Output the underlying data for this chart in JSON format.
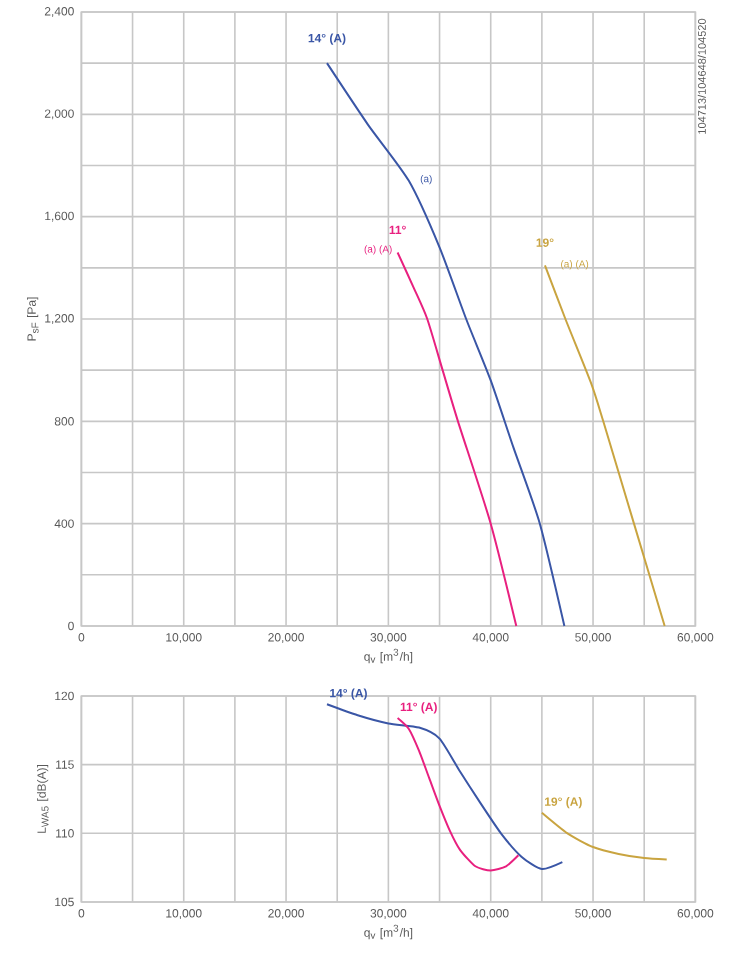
{
  "chart_data": [
    {
      "type": "line",
      "xlabel": "q$_{v}$ [m$^{3}$/h]",
      "ylabel": "P$_{sF}$ [Pa]",
      "grid": true,
      "marker": "none",
      "line_style": "solid",
      "xlim": [
        0,
        60000
      ],
      "ylim": [
        0,
        2400
      ],
      "xticks": [
        0,
        {
          "value": 5000,
          "label": null
        },
        {
          "value": 10000,
          "label": "10,000"
        },
        {
          "value": 15000,
          "label": null
        },
        {
          "value": 20000,
          "label": "20,000"
        },
        {
          "value": 25000,
          "label": null
        },
        {
          "value": 30000,
          "label": "30,000"
        },
        {
          "value": 35000,
          "label": null
        },
        {
          "value": 40000,
          "label": "40,000"
        },
        {
          "value": 45000,
          "label": null
        },
        {
          "value": 50000,
          "label": "50,000"
        },
        {
          "value": 55000,
          "label": null
        },
        {
          "value": 60000,
          "label": "60,000"
        }
      ],
      "yticks": [
        0,
        {
          "value": 200,
          "label": null
        },
        400,
        {
          "value": 600,
          "label": null
        },
        800,
        {
          "value": 1000,
          "label": null
        },
        {
          "value": 1200,
          "label": "1,200"
        },
        {
          "value": 1400,
          "label": null
        },
        {
          "value": 1600,
          "label": "1,600"
        },
        {
          "value": 1800,
          "label": null
        },
        {
          "value": 2000,
          "label": "2,000"
        },
        {
          "value": 2200,
          "label": null
        },
        {
          "value": 2400,
          "label": "2,400"
        }
      ],
      "series": [
        {
          "name": "14° (A)",
          "color": "#3a56a6",
          "x": [
            24000,
            28000,
            32000,
            35000,
            37600,
            40000,
            42200,
            44800,
            47200
          ],
          "values": [
            2200,
            1960,
            1740,
            1480,
            1200,
            960,
            700,
            400,
            0
          ]
        },
        {
          "name": "11°",
          "color": "#e8207f",
          "x": [
            30900,
            32500,
            33800,
            35300,
            36800,
            40000,
            42500
          ],
          "values": [
            1460,
            1320,
            1200,
            1000,
            800,
            400,
            0
          ]
        },
        {
          "name": "19°",
          "color": "#c9a440",
          "x": [
            45300,
            47300,
            49800,
            51000,
            54000,
            57000
          ],
          "values": [
            1410,
            1200,
            950,
            800,
            400,
            0
          ]
        }
      ],
      "annotations": [
        "(a)",
        "(a) (A)",
        "(a) (A)",
        "104713/104648/104520"
      ]
    },
    {
      "type": "line",
      "xlabel": "q$_{v}$ [m$^{3}$/h]",
      "ylabel": "L$_{WA5}$ [dB(A)]",
      "grid": true,
      "marker": "none",
      "line_style": "solid",
      "xlim": [
        0,
        60000
      ],
      "ylim": [
        105,
        120
      ],
      "xticks": [
        0,
        {
          "value": 5000,
          "label": null
        },
        {
          "value": 10000,
          "label": "10,000"
        },
        {
          "value": 15000,
          "label": null
        },
        {
          "value": 20000,
          "label": "20,000"
        },
        {
          "value": 25000,
          "label": null
        },
        {
          "value": 30000,
          "label": "30,000"
        },
        {
          "value": 35000,
          "label": null
        },
        {
          "value": 40000,
          "label": "40,000"
        },
        {
          "value": 45000,
          "label": null
        },
        {
          "value": 50000,
          "label": "50,000"
        },
        {
          "value": 55000,
          "label": null
        },
        {
          "value": 60000,
          "label": "60,000"
        }
      ],
      "yticks": [
        105,
        110,
        115,
        120
      ],
      "series": [
        {
          "name": "14° (A)",
          "color": "#3a56a6",
          "x": [
            24000,
            27000,
            30000,
            33000,
            35000,
            37000,
            39000,
            41000,
            43000,
            45000,
            47000
          ],
          "values": [
            119.4,
            118.6,
            118.0,
            117.7,
            116.9,
            114.5,
            112.2,
            110.0,
            108.3,
            107.4,
            107.9
          ]
        },
        {
          "name": "11° (A)",
          "color": "#e8207f",
          "x": [
            30900,
            32000,
            33000,
            34000,
            35000,
            36000,
            37000,
            38500,
            40000,
            41500,
            42700
          ],
          "values": [
            118.4,
            117.6,
            116.0,
            114.0,
            112.0,
            110.2,
            108.8,
            107.6,
            107.3,
            107.6,
            108.4
          ]
        },
        {
          "name": "19° (A)",
          "color": "#c9a440",
          "x": [
            45000,
            47500,
            50000,
            52500,
            55000,
            57200
          ],
          "values": [
            111.5,
            110.0,
            109.0,
            108.5,
            108.2,
            108.1
          ]
        }
      ]
    }
  ]
}
